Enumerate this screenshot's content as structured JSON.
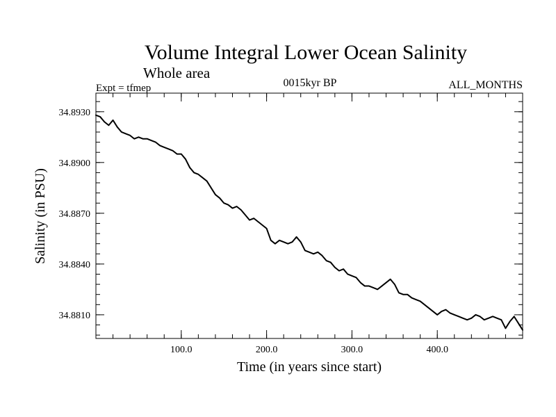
{
  "chart_data": {
    "type": "line",
    "title": "Volume Integral Lower Ocean Salinity",
    "subtitle": "Whole area",
    "expt_label": "Expt = tfmep",
    "period_label": "0015kyr BP",
    "months_label": "ALL_MONTHS",
    "xlabel": "Time (in years since start)",
    "ylabel": "Salinity (in PSU)",
    "xlim": [
      0,
      500
    ],
    "ylim": [
      34.8796,
      34.8941
    ],
    "x_ticks": [
      100,
      200,
      300,
      400
    ],
    "x_tick_labels": [
      "100.0",
      "200.0",
      "300.0",
      "400.0"
    ],
    "y_ticks": [
      34.881,
      34.884,
      34.887,
      34.89,
      34.893
    ],
    "y_tick_labels": [
      "34.8810",
      "34.8840",
      "34.8870",
      "34.8900",
      "34.8930"
    ],
    "x_minor_step": 20,
    "y_minor_step": 0.0006,
    "grid": false,
    "series": [
      {
        "color": "#000000",
        "points": [
          [
            0,
            34.8928
          ],
          [
            5,
            34.8927
          ],
          [
            10,
            34.8924
          ],
          [
            15,
            34.8922
          ],
          [
            20,
            34.8925
          ],
          [
            25,
            34.8921
          ],
          [
            30,
            34.8918
          ],
          [
            35,
            34.8917
          ],
          [
            40,
            34.8916
          ],
          [
            45,
            34.8914
          ],
          [
            50,
            34.8915
          ],
          [
            55,
            34.8914
          ],
          [
            60,
            34.8914
          ],
          [
            65,
            34.8913
          ],
          [
            70,
            34.8912
          ],
          [
            75,
            34.891
          ],
          [
            80,
            34.8909
          ],
          [
            85,
            34.8908
          ],
          [
            90,
            34.8907
          ],
          [
            95,
            34.8905
          ],
          [
            100,
            34.8905
          ],
          [
            105,
            34.8902
          ],
          [
            110,
            34.8897
          ],
          [
            115,
            34.8894
          ],
          [
            120,
            34.8893
          ],
          [
            125,
            34.8891
          ],
          [
            130,
            34.8889
          ],
          [
            135,
            34.8885
          ],
          [
            140,
            34.8881
          ],
          [
            145,
            34.8879
          ],
          [
            150,
            34.8876
          ],
          [
            155,
            34.8875
          ],
          [
            160,
            34.8873
          ],
          [
            165,
            34.8874
          ],
          [
            170,
            34.8872
          ],
          [
            175,
            34.8869
          ],
          [
            180,
            34.8866
          ],
          [
            185,
            34.8867
          ],
          [
            190,
            34.8865
          ],
          [
            195,
            34.8863
          ],
          [
            200,
            34.8861
          ],
          [
            205,
            34.8854
          ],
          [
            210,
            34.8852
          ],
          [
            215,
            34.8854
          ],
          [
            220,
            34.8853
          ],
          [
            225,
            34.8852
          ],
          [
            230,
            34.8853
          ],
          [
            235,
            34.8856
          ],
          [
            240,
            34.8853
          ],
          [
            245,
            34.8848
          ],
          [
            250,
            34.8847
          ],
          [
            255,
            34.8846
          ],
          [
            260,
            34.8847
          ],
          [
            265,
            34.8845
          ],
          [
            270,
            34.8842
          ],
          [
            275,
            34.8841
          ],
          [
            280,
            34.8838
          ],
          [
            285,
            34.8836
          ],
          [
            290,
            34.8837
          ],
          [
            295,
            34.8834
          ],
          [
            300,
            34.8833
          ],
          [
            305,
            34.8832
          ],
          [
            310,
            34.8829
          ],
          [
            315,
            34.8827
          ],
          [
            320,
            34.8827
          ],
          [
            325,
            34.8826
          ],
          [
            330,
            34.8825
          ],
          [
            335,
            34.8827
          ],
          [
            340,
            34.8829
          ],
          [
            345,
            34.8831
          ],
          [
            350,
            34.8828
          ],
          [
            355,
            34.8823
          ],
          [
            360,
            34.8822
          ],
          [
            365,
            34.8822
          ],
          [
            370,
            34.882
          ],
          [
            375,
            34.8819
          ],
          [
            380,
            34.8818
          ],
          [
            385,
            34.8816
          ],
          [
            390,
            34.8814
          ],
          [
            395,
            34.8812
          ],
          [
            400,
            34.881
          ],
          [
            405,
            34.8812
          ],
          [
            410,
            34.8813
          ],
          [
            415,
            34.8811
          ],
          [
            420,
            34.881
          ],
          [
            425,
            34.8809
          ],
          [
            430,
            34.8808
          ],
          [
            435,
            34.8807
          ],
          [
            440,
            34.8808
          ],
          [
            445,
            34.881
          ],
          [
            450,
            34.8809
          ],
          [
            455,
            34.8807
          ],
          [
            460,
            34.8808
          ],
          [
            465,
            34.8809
          ],
          [
            470,
            34.8808
          ],
          [
            475,
            34.8807
          ],
          [
            480,
            34.8802
          ],
          [
            485,
            34.8806
          ],
          [
            490,
            34.8809
          ],
          [
            495,
            34.8805
          ],
          [
            500,
            34.8801
          ]
        ]
      }
    ]
  }
}
